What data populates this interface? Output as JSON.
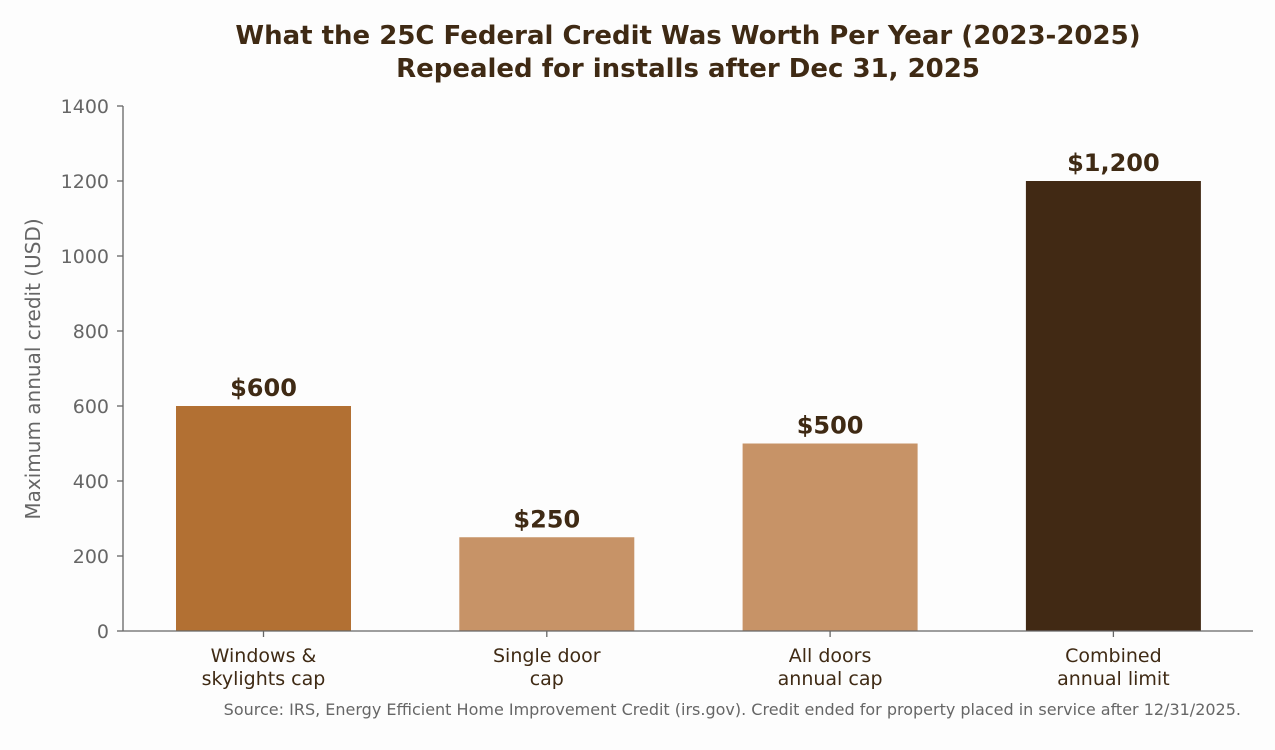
{
  "chart_data": {
    "type": "bar",
    "title": "What the 25C Federal Credit Was Worth Per Year (2023-2025)",
    "subtitle": "Repealed for installs after Dec 31, 2025",
    "xlabel": "",
    "ylabel": "Maximum annual credit (USD)",
    "categories": [
      [
        "Windows &",
        "skylights cap"
      ],
      [
        "Single door",
        "cap"
      ],
      [
        "All doors",
        "annual cap"
      ],
      [
        "Combined",
        "annual limit"
      ]
    ],
    "values": [
      600,
      250,
      500,
      1200
    ],
    "value_labels": [
      "$600",
      "$250",
      "$500",
      "$1,200"
    ],
    "bar_colors": [
      "#b27033",
      "#c79367",
      "#c79367",
      "#412914"
    ],
    "ylim": [
      0,
      1400
    ],
    "yticks": [
      0,
      200,
      400,
      600,
      800,
      1000,
      1200,
      1400
    ],
    "grid": false,
    "legend": "none",
    "source": "Source: IRS, Energy Efficient Home Improvement Credit (irs.gov). Credit ended for property placed in service after 12/31/2025."
  },
  "colors": {
    "text_dark": "#3f2a14",
    "text_muted": "#666666",
    "axis": "#666666",
    "background": "#fdfdfd"
  }
}
